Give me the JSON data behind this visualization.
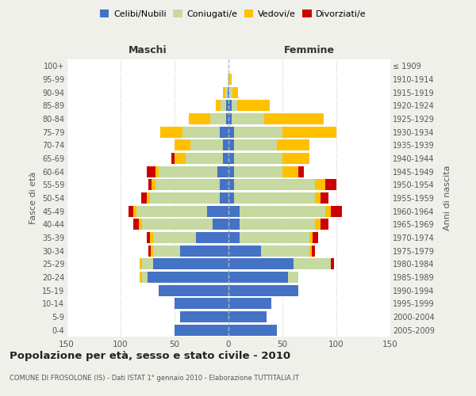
{
  "age_groups": [
    "0-4",
    "5-9",
    "10-14",
    "15-19",
    "20-24",
    "25-29",
    "30-34",
    "35-39",
    "40-44",
    "45-49",
    "50-54",
    "55-59",
    "60-64",
    "65-69",
    "70-74",
    "75-79",
    "80-84",
    "85-89",
    "90-94",
    "95-99",
    "100+"
  ],
  "birth_years": [
    "2005-2009",
    "2000-2004",
    "1995-1999",
    "1990-1994",
    "1985-1989",
    "1980-1984",
    "1975-1979",
    "1970-1974",
    "1965-1969",
    "1960-1964",
    "1955-1959",
    "1950-1954",
    "1945-1949",
    "1940-1944",
    "1935-1939",
    "1930-1934",
    "1925-1929",
    "1920-1924",
    "1915-1919",
    "1910-1914",
    "≤ 1909"
  ],
  "male": {
    "celibi": [
      50,
      45,
      50,
      65,
      75,
      70,
      45,
      30,
      15,
      20,
      8,
      8,
      10,
      5,
      5,
      8,
      2,
      2,
      1,
      0,
      0
    ],
    "coniugati": [
      0,
      0,
      0,
      0,
      5,
      10,
      25,
      40,
      65,
      65,
      65,
      60,
      55,
      35,
      30,
      35,
      15,
      5,
      2,
      1,
      0
    ],
    "vedovi": [
      0,
      0,
      0,
      0,
      2,
      2,
      2,
      3,
      3,
      3,
      3,
      3,
      3,
      10,
      15,
      20,
      20,
      5,
      2,
      0,
      0
    ],
    "divorziati": [
      0,
      0,
      0,
      0,
      0,
      0,
      2,
      3,
      5,
      5,
      5,
      3,
      8,
      3,
      0,
      0,
      0,
      0,
      0,
      0,
      0
    ]
  },
  "female": {
    "nubili": [
      45,
      35,
      40,
      65,
      55,
      60,
      30,
      10,
      10,
      10,
      5,
      5,
      5,
      5,
      5,
      5,
      3,
      3,
      1,
      0,
      0
    ],
    "coniugate": [
      0,
      0,
      0,
      0,
      10,
      35,
      45,
      65,
      70,
      80,
      75,
      75,
      45,
      45,
      40,
      45,
      30,
      5,
      3,
      1,
      0
    ],
    "vedove": [
      0,
      0,
      0,
      0,
      0,
      0,
      2,
      3,
      5,
      5,
      5,
      10,
      15,
      25,
      30,
      50,
      55,
      30,
      5,
      2,
      0
    ],
    "divorziate": [
      0,
      0,
      0,
      0,
      0,
      3,
      3,
      5,
      8,
      10,
      8,
      10,
      5,
      0,
      0,
      0,
      0,
      0,
      0,
      0,
      0
    ]
  },
  "colors": {
    "celibi_nubili": "#4472c4",
    "coniugati": "#c5d9a0",
    "vedovi": "#ffc000",
    "divorziati": "#cc0000"
  },
  "title": "Popolazione per età, sesso e stato civile - 2010",
  "subtitle": "COMUNE DI FROSOLONE (IS) - Dati ISTAT 1° gennaio 2010 - Elaborazione TUTTITALIA.IT",
  "xlabel_left": "Maschi",
  "xlabel_right": "Femmine",
  "ylabel_left": "Fasce di età",
  "ylabel_right": "Anni di nascita",
  "xlim": 150,
  "background_color": "#f0f0eb",
  "plot_background": "#ffffff"
}
